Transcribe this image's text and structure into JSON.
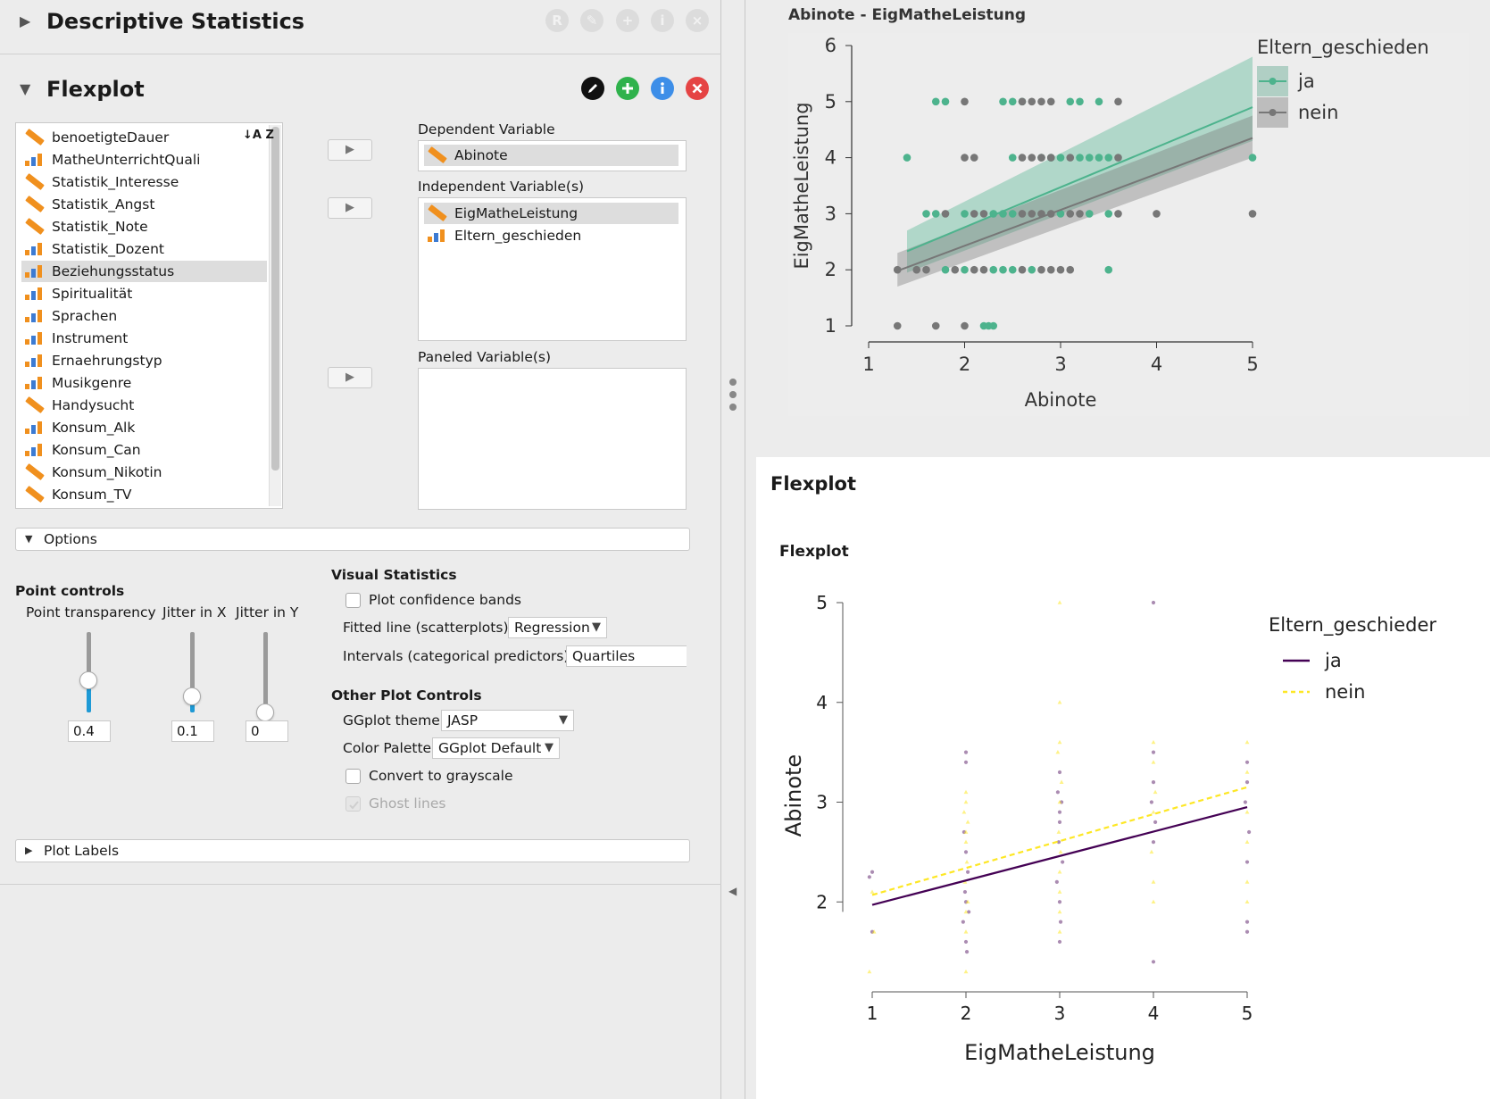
{
  "descriptive": {
    "title": "Descriptive Statistics",
    "icons": [
      "R",
      "✎",
      "+",
      "i",
      "×"
    ]
  },
  "flexplot": {
    "title": "Flexplot"
  },
  "variables": [
    {
      "name": "benoetigteDauer",
      "type": "scale"
    },
    {
      "name": "MatheUnterrichtQuali",
      "type": "ordinal"
    },
    {
      "name": "Statistik_Interesse",
      "type": "scale"
    },
    {
      "name": "Statistik_Angst",
      "type": "scale"
    },
    {
      "name": "Statistik_Note",
      "type": "scale"
    },
    {
      "name": "Statistik_Dozent",
      "type": "ordinal"
    },
    {
      "name": "Beziehungsstatus",
      "type": "ordinal",
      "selected": true
    },
    {
      "name": "Spiritualität",
      "type": "ordinal"
    },
    {
      "name": "Sprachen",
      "type": "ordinal"
    },
    {
      "name": "Instrument",
      "type": "ordinal"
    },
    {
      "name": "Ernaehrungstyp",
      "type": "ordinal"
    },
    {
      "name": "Musikgenre",
      "type": "ordinal"
    },
    {
      "name": "Handysucht",
      "type": "scale"
    },
    {
      "name": "Konsum_Alk",
      "type": "ordinal"
    },
    {
      "name": "Konsum_Can",
      "type": "ordinal"
    },
    {
      "name": "Konsum_Nikotin",
      "type": "scale"
    },
    {
      "name": "Konsum_TV",
      "type": "scale"
    }
  ],
  "sort_icon": "↓A Z",
  "dependent": {
    "label": "Dependent Variable",
    "value": "Abinote"
  },
  "independent": {
    "label": "Independent Variable(s)",
    "items": [
      "EigMatheLeistung",
      "Eltern_geschieden"
    ]
  },
  "paneled": {
    "label": "Paneled Variable(s)"
  },
  "options": {
    "label": "Options",
    "point_controls": {
      "title": "Point controls",
      "transparency": {
        "label": "Point transparency",
        "value": "0.4",
        "level": 0.4
      },
      "jitter_x": {
        "label": "Jitter in X",
        "value": "0.1",
        "level": 0.2
      },
      "jitter_y": {
        "label": "Jitter in Y",
        "value": "0",
        "level": 0
      }
    },
    "visual_statistics": {
      "title": "Visual Statistics",
      "confidence_bands": "Plot confidence bands",
      "fitted_line_label": "Fitted line (scatterplots)",
      "fitted_line_value": "Regression",
      "intervals_label": "Intervals (categorical predictors)",
      "intervals_value": "Quartiles"
    },
    "other_controls": {
      "title": "Other Plot Controls",
      "theme_label": "GGplot theme",
      "theme_value": "JASP",
      "palette_label": "Color Palette",
      "palette_value": "GGplot Default",
      "grayscale": "Convert to grayscale",
      "ghost_lines": "Ghost lines"
    }
  },
  "plot_labels": {
    "label": "Plot Labels"
  },
  "colors": {
    "ja1": "#4db38d",
    "nein1": "#777777",
    "ja2": "#440154",
    "nein2": "#fde725"
  },
  "chart_data": [
    {
      "type": "scatter",
      "title": "Abinote - EigMatheLeistung",
      "xlabel": "Abinote",
      "ylabel": "EigMatheLeistung",
      "xlim": [
        1,
        5
      ],
      "ylim": [
        1,
        6
      ],
      "xticks": [
        1,
        2,
        3,
        4,
        5
      ],
      "yticks": [
        1,
        2,
        3,
        4,
        5,
        6
      ],
      "legend_title": "Eltern_geschieden",
      "legend_position": "right",
      "series": [
        {
          "name": "ja",
          "color": "#4db38d",
          "points": [
            [
              1.7,
              5
            ],
            [
              1.8,
              5
            ],
            [
              2.4,
              5
            ],
            [
              2.5,
              5
            ],
            [
              2.6,
              5
            ],
            [
              3.1,
              5
            ],
            [
              3.2,
              5
            ],
            [
              3.4,
              5
            ],
            [
              1.4,
              4
            ],
            [
              2.5,
              4
            ],
            [
              2.8,
              4
            ],
            [
              2.9,
              4
            ],
            [
              3.0,
              4
            ],
            [
              3.2,
              4
            ],
            [
              3.3,
              4
            ],
            [
              3.4,
              4
            ],
            [
              3.5,
              4
            ],
            [
              5.0,
              4
            ],
            [
              1.6,
              3
            ],
            [
              1.7,
              3
            ],
            [
              2.0,
              3
            ],
            [
              2.3,
              3
            ],
            [
              2.4,
              3
            ],
            [
              2.5,
              3
            ],
            [
              3.0,
              3
            ],
            [
              3.3,
              3
            ],
            [
              3.5,
              3
            ],
            [
              1.8,
              2
            ],
            [
              2.0,
              2
            ],
            [
              2.3,
              2
            ],
            [
              2.4,
              2
            ],
            [
              2.5,
              2
            ],
            [
              2.7,
              2
            ],
            [
              3.5,
              2
            ],
            [
              2.2,
              1
            ],
            [
              2.25,
              1
            ],
            [
              2.3,
              1
            ]
          ],
          "fit": [
            [
              1.4,
              2.33
            ],
            [
              5,
              4.9
            ]
          ],
          "band_low": [
            [
              1.4,
              1.95
            ],
            [
              5,
              4.3
            ]
          ],
          "band_high": [
            [
              1.4,
              2.7
            ],
            [
              5,
              5.8
            ]
          ]
        },
        {
          "name": "nein",
          "color": "#777777",
          "points": [
            [
              2.0,
              5
            ],
            [
              2.6,
              5
            ],
            [
              2.7,
              5
            ],
            [
              2.8,
              5
            ],
            [
              2.9,
              5
            ],
            [
              3.6,
              5
            ],
            [
              2.0,
              4
            ],
            [
              2.1,
              4
            ],
            [
              2.6,
              4
            ],
            [
              2.7,
              4
            ],
            [
              2.8,
              4
            ],
            [
              2.9,
              4
            ],
            [
              3.1,
              4
            ],
            [
              3.6,
              4
            ],
            [
              1.8,
              3
            ],
            [
              2.1,
              3
            ],
            [
              2.2,
              3
            ],
            [
              2.6,
              3
            ],
            [
              2.7,
              3
            ],
            [
              2.8,
              3
            ],
            [
              2.9,
              3
            ],
            [
              3.1,
              3
            ],
            [
              3.2,
              3
            ],
            [
              3.6,
              3
            ],
            [
              4.0,
              3
            ],
            [
              5.0,
              3
            ],
            [
              1.3,
              2
            ],
            [
              1.5,
              2
            ],
            [
              1.6,
              2
            ],
            [
              1.9,
              2
            ],
            [
              2.1,
              2
            ],
            [
              2.2,
              2
            ],
            [
              2.6,
              2
            ],
            [
              2.8,
              2
            ],
            [
              2.9,
              2
            ],
            [
              3.0,
              2
            ],
            [
              3.1,
              2
            ],
            [
              1.3,
              1
            ],
            [
              1.7,
              1
            ],
            [
              2.0,
              1
            ]
          ],
          "fit": [
            [
              1.3,
              1.98
            ],
            [
              5,
              4.35
            ]
          ],
          "band_low": [
            [
              1.3,
              1.7
            ],
            [
              5,
              4.0
            ]
          ],
          "band_high": [
            [
              1.3,
              2.3
            ],
            [
              5,
              4.75
            ]
          ]
        }
      ]
    },
    {
      "type": "scatter",
      "section_title": "Flexplot",
      "title": "Flexplot",
      "xlabel": "EigMatheLeistung",
      "ylabel": "Abinote",
      "xlim": [
        1,
        5
      ],
      "ylim": [
        1,
        5
      ],
      "xticks": [
        1,
        2,
        3,
        4,
        5
      ],
      "yticks": [
        2,
        3,
        4,
        5
      ],
      "legend_title": "Eltern_geschieder",
      "legend_position": "right",
      "series": [
        {
          "name": "ja",
          "color": "#440154",
          "line": "solid",
          "fit": [
            [
              1,
              1.97
            ],
            [
              5,
              2.95
            ]
          ],
          "points": [
            [
              0.97,
              2.25
            ],
            [
              1.0,
              2.3
            ],
            [
              1.0,
              1.7
            ],
            [
              2.0,
              3.5
            ],
            [
              2.0,
              3.4
            ],
            [
              1.98,
              2.7
            ],
            [
              2.0,
              2.5
            ],
            [
              2.02,
              2.3
            ],
            [
              1.99,
              2.1
            ],
            [
              2.03,
              1.9
            ],
            [
              1.97,
              1.8
            ],
            [
              2.0,
              1.6
            ],
            [
              2.01,
              1.5
            ],
            [
              2.0,
              2.0
            ],
            [
              3.0,
              3.3
            ],
            [
              2.98,
              3.1
            ],
            [
              3.02,
              3.0
            ],
            [
              3.0,
              2.8
            ],
            [
              2.99,
              2.6
            ],
            [
              3.03,
              2.4
            ],
            [
              2.97,
              2.2
            ],
            [
              3.0,
              2.0
            ],
            [
              3.01,
              1.8
            ],
            [
              3.0,
              1.6
            ],
            [
              3.0,
              2.9
            ],
            [
              4.0,
              3.5
            ],
            [
              4.0,
              3.2
            ],
            [
              3.98,
              3.0
            ],
            [
              4.02,
              2.8
            ],
            [
              4.0,
              2.6
            ],
            [
              4.0,
              1.4
            ],
            [
              4.0,
              5.0
            ],
            [
              5.0,
              3.4
            ],
            [
              5.0,
              3.2
            ],
            [
              4.98,
              3.0
            ],
            [
              5.02,
              2.7
            ],
            [
              5.0,
              2.4
            ],
            [
              5.0,
              1.8
            ],
            [
              5.0,
              1.7
            ]
          ]
        },
        {
          "name": "nein",
          "color": "#fde725",
          "line": "dashed",
          "fit": [
            [
              1,
              2.07
            ],
            [
              5,
              3.15
            ]
          ],
          "points": [
            [
              0.97,
              1.3
            ],
            [
              1.0,
              2.1
            ],
            [
              1.02,
              1.7
            ],
            [
              2.0,
              3.1
            ],
            [
              2.0,
              3.0
            ],
            [
              1.98,
              2.9
            ],
            [
              2.02,
              2.8
            ],
            [
              2.0,
              2.7
            ],
            [
              2.0,
              2.6
            ],
            [
              2.01,
              2.4
            ],
            [
              1.99,
              2.2
            ],
            [
              2.02,
              2.0
            ],
            [
              2.0,
              1.9
            ],
            [
              2.0,
              1.7
            ],
            [
              2.0,
              1.3
            ],
            [
              3.0,
              5.0
            ],
            [
              3.0,
              4.0
            ],
            [
              3.0,
              3.6
            ],
            [
              2.98,
              3.5
            ],
            [
              3.02,
              3.2
            ],
            [
              3.0,
              3.0
            ],
            [
              2.99,
              2.7
            ],
            [
              3.01,
              2.5
            ],
            [
              3.0,
              2.3
            ],
            [
              3.0,
              2.1
            ],
            [
              3.0,
              1.9
            ],
            [
              3.0,
              1.7
            ],
            [
              4.0,
              3.6
            ],
            [
              4.0,
              3.4
            ],
            [
              4.02,
              3.1
            ],
            [
              4.0,
              2.9
            ],
            [
              3.98,
              2.5
            ],
            [
              4.0,
              2.2
            ],
            [
              4.0,
              2.0
            ],
            [
              5.0,
              3.6
            ],
            [
              5.0,
              3.3
            ],
            [
              5.0,
              2.9
            ],
            [
              5.0,
              2.6
            ],
            [
              5.0,
              2.2
            ],
            [
              5.0,
              2.0
            ]
          ]
        }
      ]
    }
  ]
}
